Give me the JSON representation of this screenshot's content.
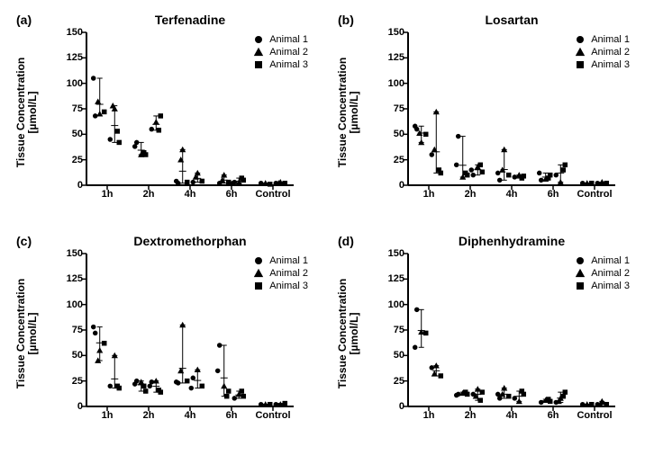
{
  "figure": {
    "background_color": "#ffffff",
    "marker_color": "#000000",
    "axis_color": "#000000",
    "font_family": "Arial",
    "panel_letter_fontsize": 14,
    "title_fontsize": 14,
    "axis_label_fontsize": 12,
    "tick_fontsize": 11,
    "legend_fontsize": 11,
    "marker_size": 5.5,
    "ylim": [
      0,
      150
    ],
    "ytick_step": 25,
    "yticks": [
      0,
      25,
      50,
      75,
      100,
      125,
      150
    ],
    "x_categories": [
      "1h",
      "2h",
      "4h",
      "6h",
      "Control"
    ],
    "legend": [
      {
        "label": "Animal 1",
        "marker": "circle"
      },
      {
        "label": "Animal 2",
        "marker": "triangle"
      },
      {
        "label": "Animal 3",
        "marker": "square"
      }
    ],
    "ylabel_line1": "Tissue Concentration",
    "ylabel_line2": "[µmol/L]"
  },
  "panels": [
    {
      "key": "a",
      "letter": "(a)",
      "title": "Terfenadine",
      "type": "scatter-jitter",
      "groups": [
        {
          "cat": "1h",
          "sub": 0,
          "vals": {
            "a1": [
              68,
              105
            ],
            "a2": [
              70,
              82
            ],
            "a3": [
              72
            ]
          }
        },
        {
          "cat": "1h",
          "sub": 1,
          "vals": {
            "a1": [
              45
            ],
            "a2": [
              75,
              78
            ],
            "a3": [
              42,
              53
            ]
          }
        },
        {
          "cat": "2h",
          "sub": 0,
          "vals": {
            "a1": [
              42,
              38
            ],
            "a2": [
              30
            ],
            "a3": [
              30,
              32
            ]
          }
        },
        {
          "cat": "2h",
          "sub": 1,
          "vals": {
            "a1": [
              55
            ],
            "a2": [
              62
            ],
            "a3": [
              68,
              54
            ]
          }
        },
        {
          "cat": "4h",
          "sub": 0,
          "vals": {
            "a1": [
              2,
              4
            ],
            "a2": [
              35,
              25
            ],
            "a3": [
              3
            ]
          }
        },
        {
          "cat": "4h",
          "sub": 1,
          "vals": {
            "a1": [
              3
            ],
            "a2": [
              12,
              8
            ],
            "a3": [
              4
            ]
          }
        },
        {
          "cat": "6h",
          "sub": 0,
          "vals": {
            "a1": [
              2
            ],
            "a2": [
              10,
              5
            ],
            "a3": [
              3
            ]
          }
        },
        {
          "cat": "6h",
          "sub": 1,
          "vals": {
            "a1": [
              3,
              2
            ],
            "a2": [
              3
            ],
            "a3": [
              5,
              7
            ]
          }
        },
        {
          "cat": "Control",
          "sub": 0,
          "vals": {
            "a1": [
              2
            ],
            "a2": [
              2
            ],
            "a3": [
              1
            ]
          }
        },
        {
          "cat": "Control",
          "sub": 1,
          "vals": {
            "a1": [
              2
            ],
            "a2": [
              3,
              2
            ],
            "a3": [
              2
            ]
          }
        }
      ]
    },
    {
      "key": "b",
      "letter": "(b)",
      "title": "Losartan",
      "type": "scatter-jitter",
      "groups": [
        {
          "cat": "1h",
          "sub": 0,
          "vals": {
            "a1": [
              55,
              58
            ],
            "a2": [
              42,
              51
            ],
            "a3": [
              50
            ]
          }
        },
        {
          "cat": "1h",
          "sub": 1,
          "vals": {
            "a1": [
              30
            ],
            "a2": [
              72,
              35
            ],
            "a3": [
              12,
              15
            ]
          }
        },
        {
          "cat": "2h",
          "sub": 0,
          "vals": {
            "a1": [
              48,
              20
            ],
            "a2": [
              8
            ],
            "a3": [
              10,
              12
            ]
          }
        },
        {
          "cat": "2h",
          "sub": 1,
          "vals": {
            "a1": [
              10,
              15
            ],
            "a2": [
              18
            ],
            "a3": [
              13,
              20
            ]
          }
        },
        {
          "cat": "4h",
          "sub": 0,
          "vals": {
            "a1": [
              5,
              12
            ],
            "a2": [
              35,
              15
            ],
            "a3": [
              10
            ]
          }
        },
        {
          "cat": "4h",
          "sub": 1,
          "vals": {
            "a1": [
              8
            ],
            "a2": [
              10
            ],
            "a3": [
              9,
              7
            ]
          }
        },
        {
          "cat": "6h",
          "sub": 0,
          "vals": {
            "a1": [
              5,
              12
            ],
            "a2": [
              6
            ],
            "a3": [
              10,
              7
            ]
          }
        },
        {
          "cat": "6h",
          "sub": 1,
          "vals": {
            "a1": [
              10
            ],
            "a2": [
              3
            ],
            "a3": [
              20,
              15
            ]
          }
        },
        {
          "cat": "Control",
          "sub": 0,
          "vals": {
            "a1": [
              2
            ],
            "a2": [
              2
            ],
            "a3": [
              2
            ]
          }
        },
        {
          "cat": "Control",
          "sub": 1,
          "vals": {
            "a1": [
              2
            ],
            "a2": [
              3
            ],
            "a3": [
              2
            ]
          }
        }
      ]
    },
    {
      "key": "c",
      "letter": "(c)",
      "title": "Dextromethorphan",
      "type": "scatter-jitter",
      "groups": [
        {
          "cat": "1h",
          "sub": 0,
          "vals": {
            "a1": [
              72,
              78
            ],
            "a2": [
              55,
              45
            ],
            "a3": [
              62
            ]
          }
        },
        {
          "cat": "1h",
          "sub": 1,
          "vals": {
            "a1": [
              20
            ],
            "a2": [
              50
            ],
            "a3": [
              18,
              20
            ]
          }
        },
        {
          "cat": "2h",
          "sub": 0,
          "vals": {
            "a1": [
              25,
              22
            ],
            "a2": [
              24
            ],
            "a3": [
              15,
              20
            ]
          }
        },
        {
          "cat": "2h",
          "sub": 1,
          "vals": {
            "a1": [
              24,
              20
            ],
            "a2": [
              25
            ],
            "a3": [
              14,
              16
            ]
          }
        },
        {
          "cat": "4h",
          "sub": 0,
          "vals": {
            "a1": [
              23,
              24
            ],
            "a2": [
              80,
              35
            ],
            "a3": [
              25
            ]
          }
        },
        {
          "cat": "4h",
          "sub": 1,
          "vals": {
            "a1": [
              28,
              18
            ],
            "a2": [
              36
            ],
            "a3": [
              20
            ]
          }
        },
        {
          "cat": "6h",
          "sub": 0,
          "vals": {
            "a1": [
              60,
              35
            ],
            "a2": [
              20
            ],
            "a3": [
              15,
              10
            ]
          }
        },
        {
          "cat": "6h",
          "sub": 1,
          "vals": {
            "a1": [
              8
            ],
            "a2": [
              12
            ],
            "a3": [
              10,
              15
            ]
          }
        },
        {
          "cat": "Control",
          "sub": 0,
          "vals": {
            "a1": [
              2
            ],
            "a2": [
              2
            ],
            "a3": [
              2
            ]
          }
        },
        {
          "cat": "Control",
          "sub": 1,
          "vals": {
            "a1": [
              2
            ],
            "a2": [
              2
            ],
            "a3": [
              3
            ]
          }
        }
      ]
    },
    {
      "key": "d",
      "letter": "(d)",
      "title": "Diphenhydramine",
      "type": "scatter-jitter",
      "groups": [
        {
          "cat": "1h",
          "sub": 0,
          "vals": {
            "a1": [
              95,
              58
            ],
            "a2": [
              73
            ],
            "a3": [
              72
            ]
          }
        },
        {
          "cat": "1h",
          "sub": 1,
          "vals": {
            "a1": [
              38
            ],
            "a2": [
              40,
              32
            ],
            "a3": [
              30
            ]
          }
        },
        {
          "cat": "2h",
          "sub": 0,
          "vals": {
            "a1": [
              12,
              11
            ],
            "a2": [
              13
            ],
            "a3": [
              12,
              14
            ]
          }
        },
        {
          "cat": "2h",
          "sub": 1,
          "vals": {
            "a1": [
              12
            ],
            "a2": [
              17,
              10
            ],
            "a3": [
              14,
              6
            ]
          }
        },
        {
          "cat": "4h",
          "sub": 0,
          "vals": {
            "a1": [
              8,
              12
            ],
            "a2": [
              18,
              12
            ],
            "a3": [
              10
            ]
          }
        },
        {
          "cat": "4h",
          "sub": 1,
          "vals": {
            "a1": [
              8
            ],
            "a2": [
              5
            ],
            "a3": [
              12,
              15
            ]
          }
        },
        {
          "cat": "6h",
          "sub": 0,
          "vals": {
            "a1": [
              4
            ],
            "a2": [
              6
            ],
            "a3": [
              5,
              7
            ]
          }
        },
        {
          "cat": "6h",
          "sub": 1,
          "vals": {
            "a1": [
              4
            ],
            "a2": [
              8,
              5
            ],
            "a3": [
              14,
              10
            ]
          }
        },
        {
          "cat": "Control",
          "sub": 0,
          "vals": {
            "a1": [
              2
            ],
            "a2": [
              2
            ],
            "a3": [
              2
            ]
          }
        },
        {
          "cat": "Control",
          "sub": 1,
          "vals": {
            "a1": [
              2
            ],
            "a2": [
              5,
              2
            ],
            "a3": [
              2
            ]
          }
        }
      ]
    }
  ]
}
